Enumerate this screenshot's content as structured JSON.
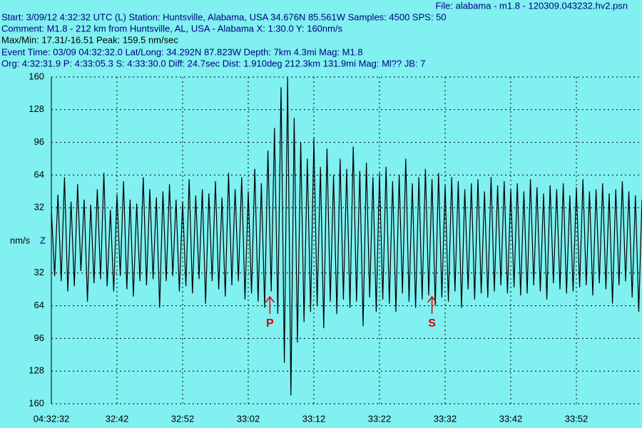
{
  "header": {
    "file": "File: alabama - m1.8 - 120309.043232.hv2.psn",
    "lines": [
      "Start: 3/09/12  4:32:32 UTC (L) Station: Huntsville, Alabama, USA 34.676N 85.561W Samples: 4500  SPS: 50",
      "Comment: M1.8 - 212 km from Huntsville, AL, USA - Alabama   X: 1:30.0 Y: 160nm/s",
      "Max/Min: 17.31/-16.51  Peak: 159.5 nm/sec",
      "Event Time: 03/09 04:32:32.0 Lat/Long: 34.292N 87.823W Depth: 7km 4.3mi Mag: M1.8",
      "Org: 4:32:31.9 P: 4:33:05.3 S: 4:33:30.0 Diff: 24.7sec Dist: 1.910deg 212.3km 131.9mi  Mag: Ml?? JB: 7"
    ]
  },
  "chart_data": {
    "type": "line",
    "ylabel": "nm/s",
    "channel": "Z",
    "color": "#000000",
    "grid": true,
    "xlim": [
      0,
      90
    ],
    "ylim": [
      -160,
      160
    ],
    "xticks": [
      {
        "value": 0,
        "label": "04:32:32"
      },
      {
        "value": 10,
        "label": "32:42"
      },
      {
        "value": 20,
        "label": "32:52"
      },
      {
        "value": 30,
        "label": "33:02"
      },
      {
        "value": 40,
        "label": "33:12"
      },
      {
        "value": 50,
        "label": "33:22"
      },
      {
        "value": 60,
        "label": "33:32"
      },
      {
        "value": 70,
        "label": "33:42"
      },
      {
        "value": 80,
        "label": "33:52"
      }
    ],
    "yticks": [
      {
        "value": 160,
        "label": "160"
      },
      {
        "value": 128,
        "label": "128"
      },
      {
        "value": 96,
        "label": "96"
      },
      {
        "value": 64,
        "label": "64"
      },
      {
        "value": 32,
        "label": "32"
      },
      {
        "value": -32,
        "label": "32"
      },
      {
        "value": -64,
        "label": "64"
      },
      {
        "value": -96,
        "label": "96"
      },
      {
        "value": -128,
        "label": "128"
      },
      {
        "value": -160,
        "label": "160"
      }
    ],
    "annotations": [
      {
        "text": "P",
        "x": 33.3,
        "color": "#e00000"
      },
      {
        "text": "S",
        "x": 58.0,
        "color": "#e00000"
      }
    ],
    "x": [
      0,
      0.5,
      1,
      1.5,
      2,
      2.5,
      3,
      3.5,
      4,
      4.5,
      5,
      5.5,
      6,
      6.5,
      7,
      7.5,
      8,
      8.5,
      9,
      9.5,
      10,
      10.5,
      11,
      11.5,
      12,
      12.5,
      13,
      13.5,
      14,
      14.5,
      15,
      15.5,
      16,
      16.5,
      17,
      17.5,
      18,
      18.5,
      19,
      19.5,
      20,
      20.5,
      21,
      21.5,
      22,
      22.5,
      23,
      23.5,
      24,
      24.5,
      25,
      25.5,
      26,
      26.5,
      27,
      27.5,
      28,
      28.5,
      29,
      29.5,
      30,
      30.5,
      31,
      31.5,
      32,
      32.5,
      33,
      33.5,
      34,
      34.5,
      35,
      35.5,
      36,
      36.5,
      37,
      37.5,
      38,
      38.5,
      39,
      39.5,
      40,
      40.5,
      41,
      41.5,
      42,
      42.5,
      43,
      43.5,
      44,
      44.5,
      45,
      45.5,
      46,
      46.5,
      47,
      47.5,
      48,
      48.5,
      49,
      49.5,
      50,
      50.5,
      51,
      51.5,
      52,
      52.5,
      53,
      53.5,
      54,
      54.5,
      55,
      55.5,
      56,
      56.5,
      57,
      57.5,
      58,
      58.5,
      59,
      59.5,
      60,
      60.5,
      61,
      61.5,
      62,
      62.5,
      63,
      63.5,
      64,
      64.5,
      65,
      65.5,
      66,
      66.5,
      67,
      67.5,
      68,
      68.5,
      69,
      69.5,
      70,
      70.5,
      71,
      71.5,
      72,
      72.5,
      73,
      73.5,
      74,
      74.5,
      75,
      75.5,
      76,
      76.5,
      77,
      77.5,
      78,
      78.5,
      79,
      79.5,
      80,
      80.5,
      81,
      81.5,
      82,
      82.5,
      83,
      83.5,
      84,
      84.5,
      85,
      85.5,
      86,
      86.5,
      87,
      87.5,
      88,
      88.5,
      89,
      89.5,
      90
    ],
    "values": [
      30,
      -35,
      45,
      -40,
      62,
      -50,
      38,
      -45,
      55,
      -30,
      40,
      -60,
      35,
      -42,
      50,
      -38,
      66,
      -45,
      30,
      -50,
      45,
      -35,
      58,
      -48,
      40,
      -55,
      36,
      -40,
      62,
      -44,
      50,
      -38,
      42,
      -66,
      48,
      -40,
      55,
      -35,
      40,
      -50,
      38,
      -45,
      60,
      -52,
      44,
      -38,
      50,
      -62,
      46,
      -40,
      58,
      -48,
      42,
      -55,
      66,
      -44,
      50,
      -40,
      62,
      -58,
      48,
      -52,
      70,
      -60,
      56,
      -66,
      88,
      -50,
      110,
      -72,
      150,
      -120,
      159.5,
      -152,
      120,
      -100,
      96,
      -80,
      80,
      -70,
      100,
      -64,
      72,
      -86,
      90,
      -60,
      64,
      -72,
      80,
      -58,
      70,
      -66,
      92,
      -60,
      68,
      -84,
      76,
      -56,
      62,
      -70,
      66,
      -58,
      72,
      -62,
      58,
      -70,
      64,
      -52,
      80,
      -60,
      56,
      -66,
      62,
      -58,
      70,
      -54,
      60,
      -64,
      66,
      -56,
      54,
      -60,
      62,
      -50,
      58,
      -66,
      50,
      -48,
      56,
      -58,
      60,
      -52,
      48,
      -56,
      62,
      -50,
      54,
      -44,
      58,
      -52,
      50,
      -46,
      56,
      -54,
      48,
      -52,
      60,
      -44,
      52,
      -50,
      46,
      -58,
      54,
      -42,
      50,
      -48,
      56,
      -52,
      44,
      -50,
      52,
      -46,
      60,
      -44,
      48,
      -54,
      50,
      -42,
      56,
      -48,
      46,
      -62,
      50,
      -44,
      58,
      -40,
      48,
      -56,
      44,
      -70,
      40
    ]
  }
}
